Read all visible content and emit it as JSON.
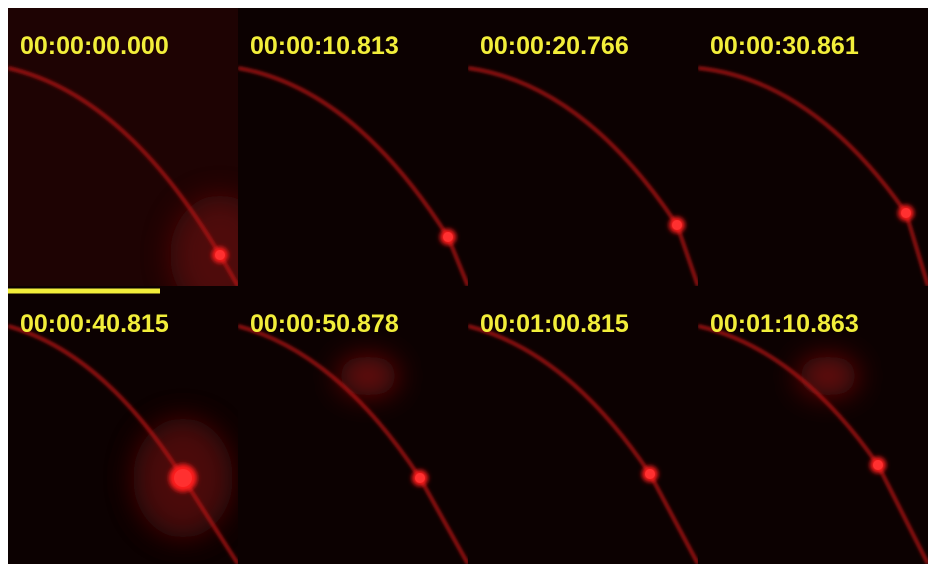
{
  "panels": [
    {
      "timestamp": "00:00:00.000"
    },
    {
      "timestamp": "00:00:10.813"
    },
    {
      "timestamp": "00:00:20.766"
    },
    {
      "timestamp": "00:00:30.861"
    },
    {
      "timestamp": "00:00:40.815"
    },
    {
      "timestamp": "00:00:50.878"
    },
    {
      "timestamp": "00:01:00.815"
    },
    {
      "timestamp": "00:01:10.863"
    }
  ]
}
